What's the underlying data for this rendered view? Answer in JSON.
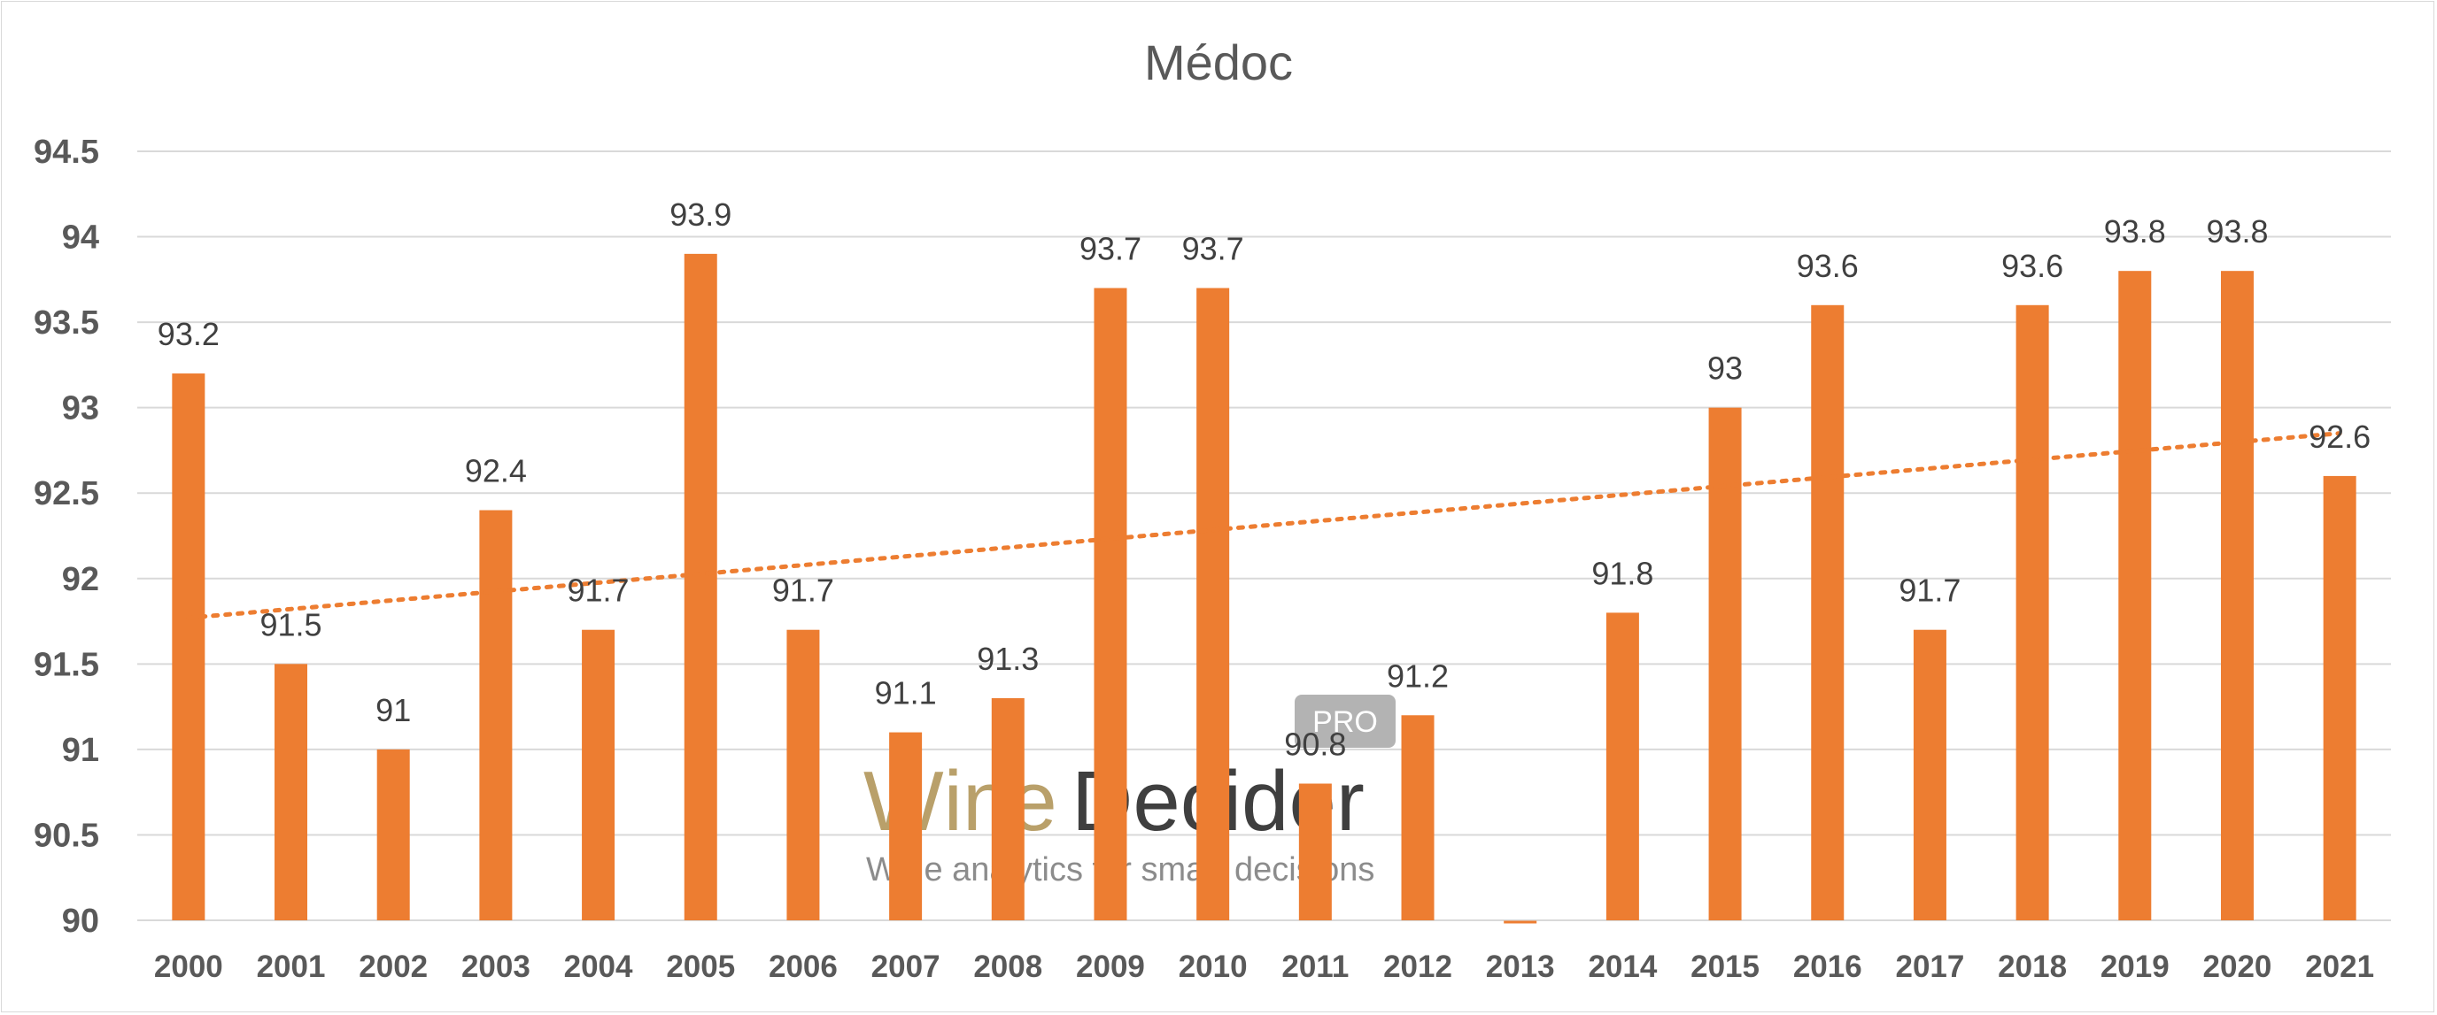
{
  "chart_data": {
    "type": "bar",
    "title": "Médoc",
    "xlabel": "",
    "ylabel": "",
    "ylim": [
      90,
      94.5
    ],
    "yticks": [
      "90",
      "90.5",
      "91",
      "91.5",
      "92",
      "92.5",
      "93",
      "93.5",
      "94",
      "94.5"
    ],
    "grid": true,
    "legend": "none",
    "categories": [
      "2000",
      "2001",
      "2002",
      "2003",
      "2004",
      "2005",
      "2006",
      "2007",
      "2008",
      "2009",
      "2010",
      "2011",
      "2012",
      "2013",
      "2014",
      "2015",
      "2016",
      "2017",
      "2018",
      "2019",
      "2020",
      "2021"
    ],
    "values": [
      93.2,
      91.5,
      91,
      92.4,
      91.7,
      93.9,
      91.7,
      91.1,
      91.3,
      93.7,
      93.7,
      90.8,
      91.2,
      null,
      91.8,
      93,
      93.6,
      91.7,
      93.6,
      93.8,
      93.8,
      92.6
    ],
    "data_labels": [
      "93.2",
      "91.5",
      "91",
      "92.4",
      "91.7",
      "93.9",
      "91.7",
      "91.1",
      "91.3",
      "93.7",
      "93.7",
      "90.8",
      "91.2",
      "",
      "91.8",
      "93",
      "93.6",
      "91.7",
      "93.6",
      "93.8",
      "93.8",
      "92.6"
    ],
    "trendline": {
      "type": "linear",
      "style": "dotted",
      "start": 91.77,
      "end": 92.85
    },
    "colors": {
      "bar": "#ed7d31",
      "trend": "#ed7d31",
      "grid": "#d9d9d9",
      "text": "#595959"
    }
  },
  "watermark": {
    "brand_part1": "Wine",
    "brand_part2": "Decider",
    "badge": "PRO",
    "tagline": "Wine analytics for smart decisions"
  }
}
